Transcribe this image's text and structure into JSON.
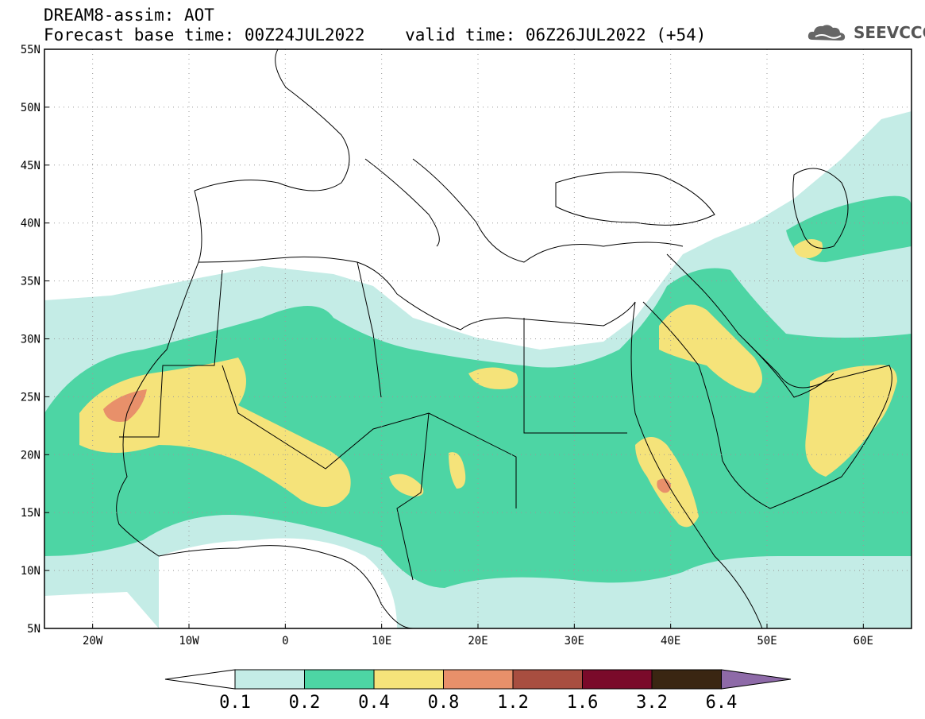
{
  "header": {
    "line1": "DREAM8-assim: AOT",
    "line2": "Forecast base time: 00Z24JUL2022    valid time: 06Z26JUL2022 (+54)"
  },
  "logo": {
    "text": "SEEVCCC",
    "icon": "cloud-logo-icon"
  },
  "map": {
    "lon_range": [
      -25,
      65
    ],
    "lat_range": [
      5,
      55
    ],
    "lon_ticks": [
      {
        "value": -20,
        "label": "20W"
      },
      {
        "value": -10,
        "label": "10W"
      },
      {
        "value": 0,
        "label": "0"
      },
      {
        "value": 10,
        "label": "10E"
      },
      {
        "value": 20,
        "label": "20E"
      },
      {
        "value": 30,
        "label": "30E"
      },
      {
        "value": 40,
        "label": "40E"
      },
      {
        "value": 50,
        "label": "50E"
      },
      {
        "value": 60,
        "label": "60E"
      }
    ],
    "lat_ticks": [
      {
        "value": 55,
        "label": "55N"
      },
      {
        "value": 50,
        "label": "50N"
      },
      {
        "value": 45,
        "label": "45N"
      },
      {
        "value": 40,
        "label": "40N"
      },
      {
        "value": 35,
        "label": "35N"
      },
      {
        "value": 30,
        "label": "30N"
      },
      {
        "value": 25,
        "label": "25N"
      },
      {
        "value": 20,
        "label": "20N"
      },
      {
        "value": 15,
        "label": "15N"
      },
      {
        "value": 10,
        "label": "10N"
      },
      {
        "value": 5,
        "label": "5N"
      }
    ],
    "grid": "dotted"
  },
  "colorbar": {
    "labels": [
      "0.1",
      "0.2",
      "0.4",
      "0.8",
      "1.2",
      "1.6",
      "3.2",
      "6.4"
    ],
    "colors": {
      "under": "#ffffff",
      "bins": [
        "#c4ece6",
        "#4dd5a4",
        "#f5e37a",
        "#e8906a",
        "#a84e40",
        "#7a0a2a",
        "#3a2612"
      ],
      "over": "#8e6aa8"
    }
  }
}
